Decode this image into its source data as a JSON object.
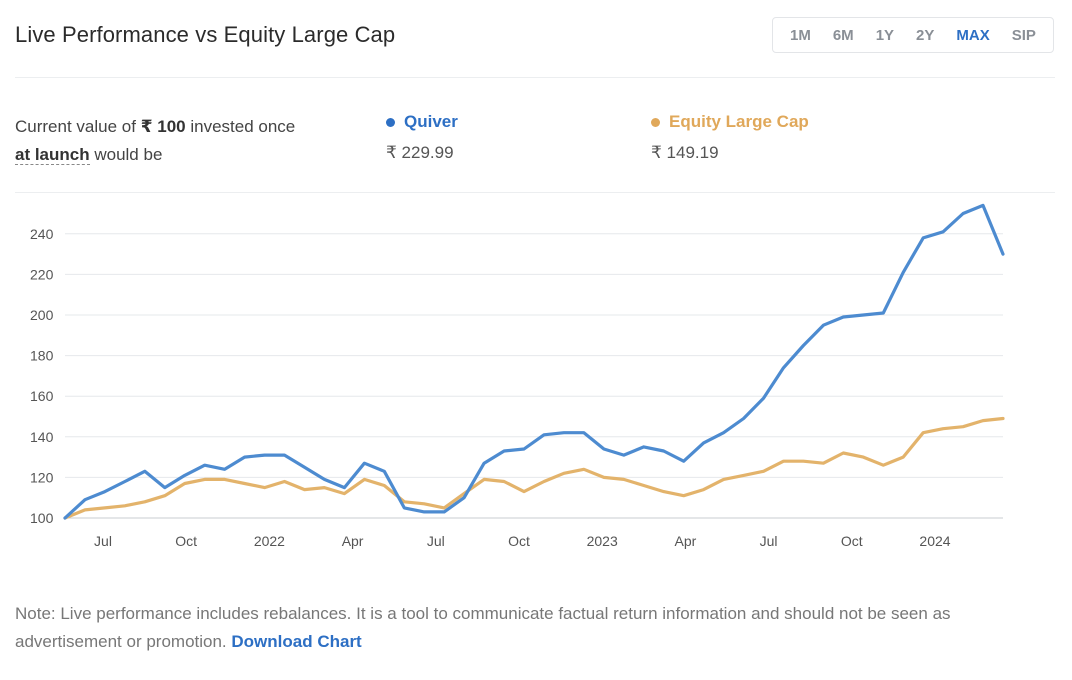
{
  "header": {
    "title": "Live Performance vs Equity Large Cap"
  },
  "ranges": [
    {
      "label": "1M"
    },
    {
      "label": "6M"
    },
    {
      "label": "1Y"
    },
    {
      "label": "2Y"
    },
    {
      "label": "MAX",
      "active": true
    },
    {
      "label": "SIP"
    }
  ],
  "summary": {
    "text_pre": "Current value of ",
    "amount": "₹ 100",
    "text_mid": " invested once",
    "launch": "at launch",
    "text_post": " would be"
  },
  "legend": [
    {
      "name": "Quiver",
      "value": "₹ 229.99",
      "color": "#4d8bd0"
    },
    {
      "name": "Equity Large Cap",
      "value": "₹ 149.19",
      "color": "#e3b36b"
    }
  ],
  "chart_data": {
    "type": "line",
    "x_tick_labels": [
      "Jul",
      "Oct",
      "2022",
      "Apr",
      "Jul",
      "Oct",
      "2023",
      "Apr",
      "Jul",
      "Oct",
      "2024"
    ],
    "y_ticks": [
      100,
      120,
      140,
      160,
      180,
      200,
      220,
      240
    ],
    "ylim": [
      100,
      255
    ],
    "grid": true,
    "series": [
      {
        "name": "Quiver",
        "color": "#4d8bd0",
        "values": [
          100,
          109,
          113,
          118,
          123,
          115,
          121,
          126,
          124,
          130,
          131,
          131,
          125,
          119,
          115,
          127,
          123,
          105,
          103,
          103,
          110,
          127,
          133,
          134,
          141,
          142,
          142,
          134,
          131,
          135,
          133,
          128,
          137,
          142,
          149,
          159,
          174,
          185,
          195,
          199,
          200,
          201,
          221,
          238,
          241,
          250,
          254,
          230
        ]
      },
      {
        "name": "Equity Large Cap",
        "color": "#e3b36b",
        "values": [
          100,
          104,
          105,
          106,
          108,
          111,
          117,
          119,
          119,
          117,
          115,
          118,
          114,
          115,
          112,
          119,
          116,
          108,
          107,
          105,
          112,
          119,
          118,
          113,
          118,
          122,
          124,
          120,
          119,
          116,
          113,
          111,
          114,
          119,
          121,
          123,
          128,
          128,
          127,
          132,
          130,
          126,
          130,
          142,
          144,
          145,
          148,
          149
        ]
      }
    ]
  },
  "footer": {
    "note": "Note: Live performance includes rebalances. It is a tool to communicate factual return information and should not be seen as advertisement or promotion.",
    "link": "Download Chart"
  }
}
